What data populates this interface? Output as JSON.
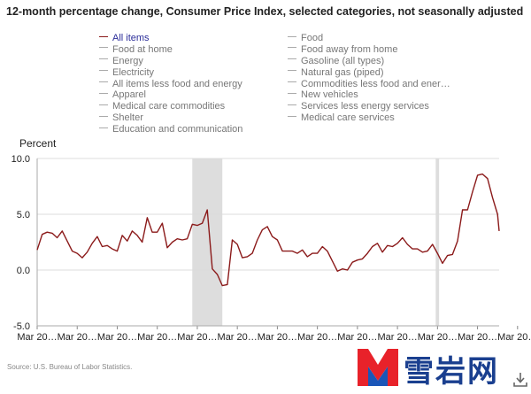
{
  "title": "12-month percentage change, Consumer Price Index, selected categories, not seasonally adjusted",
  "legend": {
    "left": [
      {
        "label": "All items",
        "active": true
      },
      {
        "label": "Food at home",
        "active": false
      },
      {
        "label": "Energy",
        "active": false
      },
      {
        "label": "Electricity",
        "active": false
      },
      {
        "label": "All items less food and energy",
        "active": false
      },
      {
        "label": "Apparel",
        "active": false
      },
      {
        "label": "Medical care commodities",
        "active": false
      },
      {
        "label": "Shelter",
        "active": false
      },
      {
        "label": "Education and communication",
        "active": false
      }
    ],
    "right": [
      {
        "label": "Food",
        "active": false
      },
      {
        "label": "Food away from home",
        "active": false
      },
      {
        "label": "Gasoline (all types)",
        "active": false
      },
      {
        "label": "Natural gas (piped)",
        "active": false
      },
      {
        "label": "Commodities less food and ener…",
        "active": false
      },
      {
        "label": "New vehicles",
        "active": false
      },
      {
        "label": "Services less energy services",
        "active": false
      },
      {
        "label": "Medical care services",
        "active": false
      }
    ]
  },
  "source": "Source: U.S. Bureau of Labor Statistics.",
  "brand": {
    "name": "雪岩网",
    "logo_letter": "M"
  },
  "colors": {
    "series": "#8b1a1a",
    "recession": "#dddddd",
    "active_legend": "#2b2d99",
    "inactive_legend": "#777777"
  },
  "chart_data": {
    "type": "line",
    "title": "12-month percentage change, Consumer Price Index, selected categories, not seasonally adjusted",
    "ylabel": "Percent",
    "xlabel": "",
    "ylim": [
      -5.0,
      10.0
    ],
    "yticks": [
      10.0,
      5.0,
      0.0,
      -5.0
    ],
    "ytick_labels": [
      "10.0",
      "5.0",
      "0.0",
      "-5.0"
    ],
    "xlim": [
      2000.17,
      2023.25
    ],
    "xticks": [
      2000.17,
      2002.17,
      2004.17,
      2006.17,
      2008.17,
      2010.17,
      2012.17,
      2014.17,
      2016.17,
      2018.17,
      2020.17,
      2022.17,
      2024.17
    ],
    "xtick_labels": [
      "Mar 20…",
      "Mar 20…",
      "Mar 20…",
      "Mar 20…",
      "Mar 20…",
      "Mar 20…",
      "Mar 20…",
      "Mar 20…",
      "Mar 20…",
      "Mar 20…",
      "Mar 20…",
      "Mar 20…",
      "Mar 20…"
    ],
    "grid": true,
    "recessions": [
      [
        2007.92,
        2009.42
      ],
      [
        2020.08,
        2020.25
      ]
    ],
    "series": [
      {
        "name": "All items",
        "x": [
          2000.17,
          2000.42,
          2000.67,
          2000.92,
          2001.17,
          2001.42,
          2001.67,
          2001.92,
          2002.17,
          2002.42,
          2002.67,
          2002.92,
          2003.17,
          2003.42,
          2003.67,
          2003.92,
          2004.17,
          2004.42,
          2004.67,
          2004.92,
          2005.17,
          2005.42,
          2005.67,
          2005.92,
          2006.17,
          2006.42,
          2006.67,
          2006.92,
          2007.17,
          2007.42,
          2007.67,
          2007.92,
          2008.17,
          2008.42,
          2008.67,
          2008.92,
          2009.17,
          2009.42,
          2009.67,
          2009.92,
          2010.17,
          2010.42,
          2010.67,
          2010.92,
          2011.17,
          2011.42,
          2011.67,
          2011.92,
          2012.17,
          2012.42,
          2012.67,
          2012.92,
          2013.17,
          2013.42,
          2013.67,
          2013.92,
          2014.17,
          2014.42,
          2014.67,
          2014.92,
          2015.17,
          2015.42,
          2015.67,
          2015.92,
          2016.17,
          2016.42,
          2016.67,
          2016.92,
          2017.17,
          2017.42,
          2017.67,
          2017.92,
          2018.17,
          2018.42,
          2018.67,
          2018.92,
          2019.17,
          2019.42,
          2019.67,
          2019.92,
          2020.17,
          2020.42,
          2020.67,
          2020.92,
          2021.17,
          2021.42,
          2021.67,
          2021.92,
          2022.17,
          2022.42,
          2022.67,
          2022.92,
          2023.17,
          2023.25
        ],
        "values": [
          1.8,
          3.2,
          3.4,
          3.3,
          2.9,
          3.5,
          2.6,
          1.7,
          1.5,
          1.1,
          1.6,
          2.4,
          3.0,
          2.1,
          2.2,
          1.9,
          1.7,
          3.1,
          2.6,
          3.5,
          3.1,
          2.5,
          4.7,
          3.4,
          3.4,
          4.2,
          2.0,
          2.5,
          2.8,
          2.7,
          2.8,
          4.1,
          4.0,
          4.2,
          5.4,
          0.1,
          -0.4,
          -1.4,
          -1.3,
          2.7,
          2.3,
          1.1,
          1.2,
          1.5,
          2.7,
          3.6,
          3.9,
          3.0,
          2.7,
          1.7,
          1.7,
          1.7,
          1.5,
          1.8,
          1.2,
          1.5,
          1.5,
          2.1,
          1.7,
          0.8,
          -0.1,
          0.1,
          0.0,
          0.7,
          0.9,
          1.0,
          1.5,
          2.1,
          2.4,
          1.6,
          2.2,
          2.1,
          2.4,
          2.9,
          2.3,
          1.9,
          1.9,
          1.6,
          1.7,
          2.3,
          1.5,
          0.6,
          1.3,
          1.4,
          2.6,
          5.4,
          5.4,
          7.0,
          8.5,
          8.6,
          8.2,
          6.5,
          5.0,
          3.5
        ]
      }
    ]
  }
}
